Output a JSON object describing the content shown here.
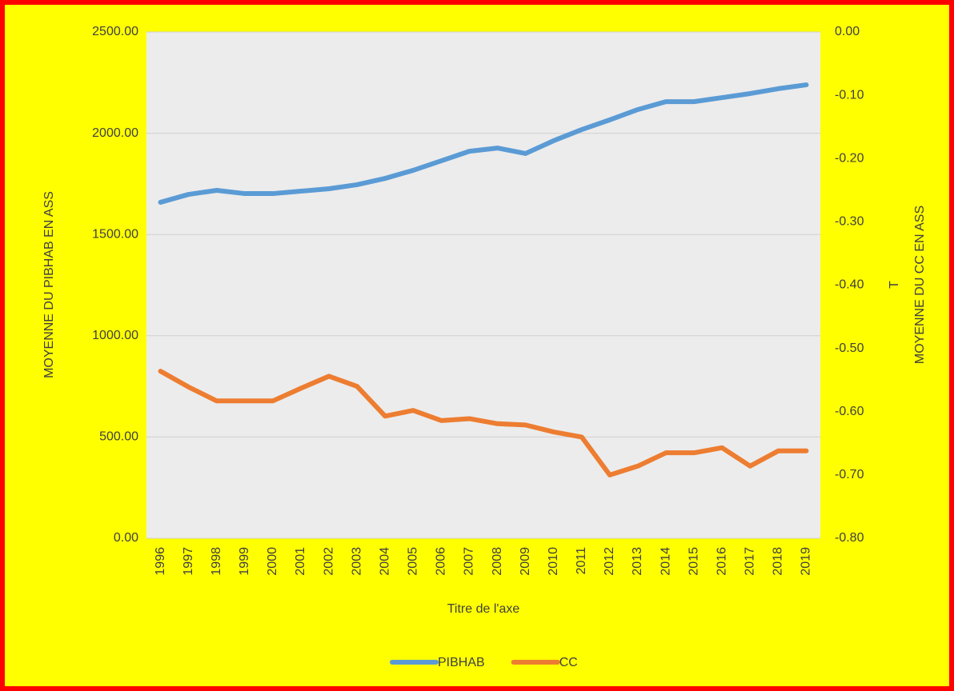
{
  "chart_data": {
    "type": "line",
    "x_label": "Titre de l'axe",
    "y_label": "MOYENNE DU PIBHAB EN ASS",
    "y2_label": "MOYENNE DU CC EN ASS",
    "annotations": [
      "T"
    ],
    "categories": [
      "1996",
      "1997",
      "1998",
      "1999",
      "2000",
      "2001",
      "2002",
      "2003",
      "2004",
      "2005",
      "2006",
      "2007",
      "2008",
      "2009",
      "2010",
      "2011",
      "2012",
      "2013",
      "2014",
      "2015",
      "2016",
      "2017",
      "2018",
      "2019"
    ],
    "series": [
      {
        "name": "PIBHAB",
        "color": "#5b9bd5",
        "values": [
          1659,
          1698,
          1718,
          1702,
          1702,
          1714,
          1726,
          1746,
          1777,
          1817,
          1864,
          1911,
          1927,
          1900,
          1963,
          2018,
          2066,
          2117,
          2156,
          2156,
          2176,
          2196,
          2220,
          2239
        ]
      },
      {
        "name": "CC",
        "color": "#ed7d31",
        "axis": "y2",
        "values": [
          -0.536,
          -0.561,
          -0.583,
          -0.583,
          -0.583,
          -0.563,
          -0.544,
          -0.56,
          -0.607,
          -0.598,
          -0.614,
          -0.611,
          -0.619,
          -0.621,
          -0.632,
          -0.64,
          -0.7,
          -0.686,
          -0.665,
          -0.665,
          -0.657,
          -0.686,
          -0.662,
          -0.662
        ]
      }
    ],
    "ylim": [
      0,
      2500
    ],
    "yticks": [
      {
        "value": 0,
        "label": "0.00"
      },
      {
        "value": 500,
        "label": "500.00"
      },
      {
        "value": 1000,
        "label": "1000.00"
      },
      {
        "value": 1500,
        "label": "1500.00"
      },
      {
        "value": 2000,
        "label": "2000.00"
      },
      {
        "value": 2500,
        "label": "2500.00"
      }
    ],
    "y2lim": [
      -0.8,
      0
    ],
    "y2ticks": [
      {
        "value": -0.8,
        "label": "-0.80"
      },
      {
        "value": -0.7,
        "label": "-0.70"
      },
      {
        "value": -0.6,
        "label": "-0.60"
      },
      {
        "value": -0.5,
        "label": "-0.50"
      },
      {
        "value": -0.4,
        "label": "-0.40"
      },
      {
        "value": -0.3,
        "label": "-0.30"
      },
      {
        "value": -0.2,
        "label": "-0.20"
      },
      {
        "value": -0.1,
        "label": "-0.10"
      },
      {
        "value": 0,
        "label": "0.00"
      }
    ],
    "grid": true,
    "legend": "bottom"
  }
}
